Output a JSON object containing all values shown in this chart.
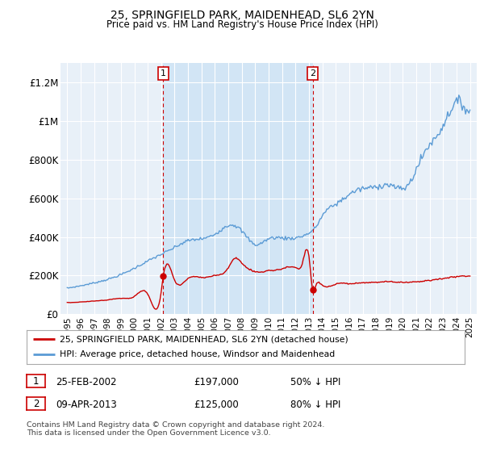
{
  "title": "25, SPRINGFIELD PARK, MAIDENHEAD, SL6 2YN",
  "subtitle": "Price paid vs. HM Land Registry's House Price Index (HPI)",
  "legend_line1": "25, SPRINGFIELD PARK, MAIDENHEAD, SL6 2YN (detached house)",
  "legend_line2": "HPI: Average price, detached house, Windsor and Maidenhead",
  "transaction1_label": "1",
  "transaction1_date": "25-FEB-2002",
  "transaction1_price": "£197,000",
  "transaction1_hpi": "50% ↓ HPI",
  "transaction2_label": "2",
  "transaction2_date": "09-APR-2013",
  "transaction2_price": "£125,000",
  "transaction2_hpi": "80% ↓ HPI",
  "footer": "Contains HM Land Registry data © Crown copyright and database right 2024.\nThis data is licensed under the Open Government Licence v3.0.",
  "hpi_color": "#5b9bd5",
  "price_color": "#cc0000",
  "marker_color": "#cc0000",
  "background_plot": "#e8f0f8",
  "background_highlight": "#d0e4f5",
  "ylim": [
    0,
    1300000
  ],
  "yticks": [
    0,
    200000,
    400000,
    600000,
    800000,
    1000000,
    1200000
  ],
  "ytick_labels": [
    "£0",
    "£200K",
    "£400K",
    "£600K",
    "£800K",
    "£1M",
    "£1.2M"
  ],
  "xmin_year": 1994.5,
  "xmax_year": 2025.5,
  "xtick_years": [
    1995,
    1996,
    1997,
    1998,
    1999,
    2000,
    2001,
    2002,
    2003,
    2004,
    2005,
    2006,
    2007,
    2008,
    2009,
    2010,
    2011,
    2012,
    2013,
    2014,
    2015,
    2016,
    2017,
    2018,
    2019,
    2020,
    2021,
    2022,
    2023,
    2024,
    2025
  ],
  "vline1_x": 2002.15,
  "vline2_x": 2013.28,
  "transaction1_x": 2002.15,
  "transaction1_y": 197000,
  "transaction2_x": 2013.28,
  "transaction2_y": 125000
}
